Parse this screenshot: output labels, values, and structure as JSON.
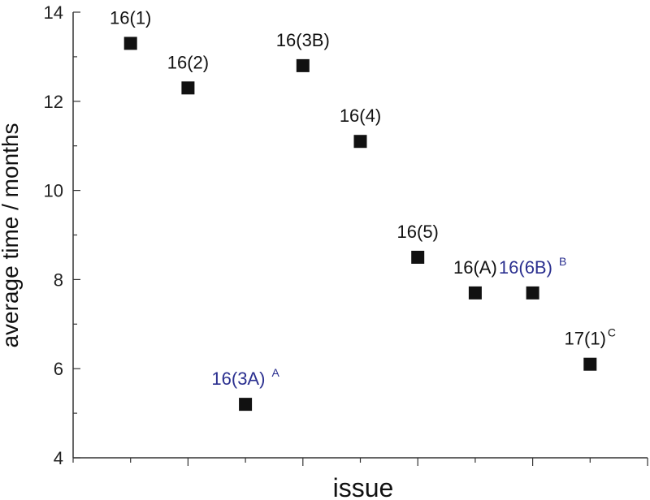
{
  "chart_data": {
    "type": "scatter",
    "title": "",
    "xlabel": "issue",
    "ylabel": "average time / months",
    "xlim": [
      0,
      10
    ],
    "ylim": [
      4,
      14
    ],
    "y_ticks": [
      4,
      6,
      8,
      10,
      12,
      14
    ],
    "x_tick_labels": [],
    "grid": false,
    "marker": "square",
    "colors": {
      "normal": "#111111",
      "highlight": "#2a2f8f",
      "axis": "#333333"
    },
    "points": [
      {
        "label": "16(1)",
        "sup": "",
        "x": 1,
        "y": 13.3,
        "highlight": false
      },
      {
        "label": "16(2)",
        "sup": "",
        "x": 2,
        "y": 12.3,
        "highlight": false
      },
      {
        "label": "16(3A)",
        "sup": "A",
        "x": 3,
        "y": 5.2,
        "highlight": true
      },
      {
        "label": "16(3B)",
        "sup": "",
        "x": 4,
        "y": 12.8,
        "highlight": false
      },
      {
        "label": "16(4)",
        "sup": "",
        "x": 5,
        "y": 11.1,
        "highlight": false
      },
      {
        "label": "16(5)",
        "sup": "",
        "x": 6,
        "y": 8.5,
        "highlight": false
      },
      {
        "label": "16(A)",
        "sup": "",
        "x": 7,
        "y": 7.7,
        "highlight": false
      },
      {
        "label": "16(6B)",
        "sup": "B",
        "x": 8,
        "y": 7.7,
        "highlight": true
      },
      {
        "label": "17(1)",
        "sup": "C",
        "x": 9,
        "y": 6.1,
        "highlight": false
      }
    ]
  }
}
